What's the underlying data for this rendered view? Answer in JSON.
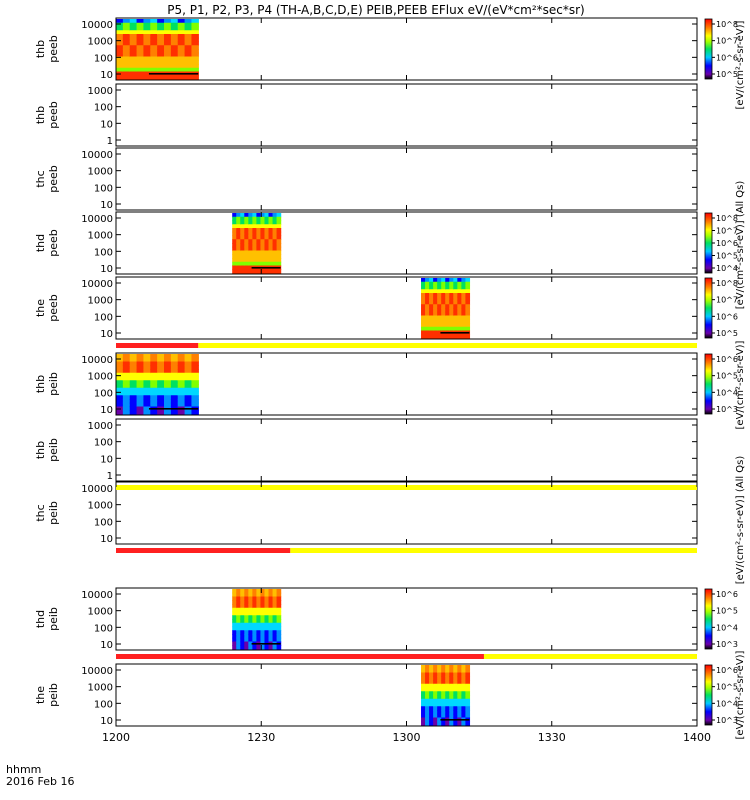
{
  "chart_data": {
    "type": "heatmap",
    "title": "P5, P1, P2, P3, P4 (TH-A,B,C,D,E) PEIB,PEEB EFlux eV/(eV*cm²*sec*sr)",
    "xaxis": {
      "ticks": [
        "1200",
        "1230",
        "1300",
        "1330",
        "1400"
      ],
      "label_line1": "hhmm",
      "label_line2": "2016 Feb 16",
      "range_minutes": [
        0,
        120
      ]
    },
    "colorbar_label_electron": "[eV/(cm²-s-sr-eV)]",
    "colorbar_label_ion": "[eV/(cm²-s-sr-eV)] (All Qs)",
    "panels": [
      {
        "probe": "thb",
        "species": "peeb",
        "ylabel1": "thb",
        "ylabel2": "peeb",
        "yticks": [
          "10",
          "100",
          "1000",
          "10000"
        ],
        "data": [
          {
            "start_min": 0,
            "end_min": 17,
            "pattern": "electron"
          }
        ],
        "colorbar_ticks": [
          "10^5",
          "10^6",
          "10^7",
          "10^8"
        ]
      },
      {
        "probe": "thb",
        "species": "peeb",
        "ylabel1": "thb",
        "ylabel2": "peeb",
        "yticks": [
          "1",
          "10",
          "100",
          "1000"
        ],
        "data": [],
        "colorbar_ticks": []
      },
      {
        "probe": "thc",
        "species": "peeb",
        "ylabel1": "thc",
        "ylabel2": "peeb",
        "yticks": [
          "10",
          "100",
          "1000",
          "10000"
        ],
        "data": [],
        "colorbar_ticks": []
      },
      {
        "probe": "thd",
        "species": "peeb",
        "ylabel1": "thd",
        "ylabel2": "peeb",
        "yticks": [
          "10",
          "100",
          "1000",
          "10000"
        ],
        "data": [
          {
            "start_min": 24,
            "end_min": 34,
            "pattern": "electron"
          }
        ],
        "colorbar_ticks": [
          "10^4",
          "10^5",
          "10^6",
          "10^7",
          "10^8"
        ]
      },
      {
        "probe": "the",
        "species": "peeb",
        "ylabel1": "the",
        "ylabel2": "peeb",
        "yticks": [
          "10",
          "100",
          "1000",
          "10000"
        ],
        "data": [
          {
            "start_min": 63,
            "end_min": 73,
            "pattern": "electron"
          }
        ],
        "colorbar_ticks": [
          "10^5",
          "10^6",
          "10^7",
          "10^8"
        ]
      },
      {
        "probe": "thb",
        "species": "peib",
        "ylabel1": "thb",
        "ylabel2": "peib",
        "yticks": [
          "10",
          "100",
          "1000",
          "10000"
        ],
        "data": [
          {
            "start_min": 0,
            "end_min": 17,
            "pattern": "ion"
          }
        ],
        "colorbar_ticks": [
          "10^3",
          "10^4",
          "10^5",
          "10^6"
        ]
      },
      {
        "probe": "thb",
        "species": "peib",
        "ylabel1": "thb",
        "ylabel2": "peib",
        "yticks": [
          "1",
          "10",
          "100",
          "1000"
        ],
        "data": [],
        "colorbar_ticks": []
      },
      {
        "probe": "thc",
        "species": "peib",
        "ylabel1": "thc",
        "ylabel2": "peib",
        "yticks": [
          "10",
          "100",
          "1000",
          "10000"
        ],
        "data": [],
        "colorbar_ticks": []
      },
      {
        "probe": "thd",
        "species": "peib",
        "ylabel1": "thd",
        "ylabel2": "peib",
        "yticks": [
          "10",
          "100",
          "1000",
          "10000"
        ],
        "data": [
          {
            "start_min": 24,
            "end_min": 34,
            "pattern": "ion"
          }
        ],
        "colorbar_ticks": [
          "10^3",
          "10^4",
          "10^5",
          "10^6"
        ]
      },
      {
        "probe": "the",
        "species": "peib",
        "ylabel1": "the",
        "ylabel2": "peib",
        "yticks": [
          "10",
          "100",
          "1000",
          "10000"
        ],
        "data": [
          {
            "start_min": 63,
            "end_min": 73,
            "pattern": "ion"
          }
        ],
        "colorbar_ticks": [
          "10^3",
          "10^4",
          "10^5",
          "10^6"
        ]
      }
    ],
    "status_bars": [
      {
        "after_panel": 4,
        "segments": [
          {
            "start_min": 0,
            "end_min": 17,
            "color": "#ff2020"
          },
          {
            "start_min": 17,
            "end_min": 120,
            "color": "#ffff00"
          }
        ]
      },
      {
        "after_panel": 6,
        "segments": [
          {
            "start_min": 0,
            "end_min": 120,
            "color": "#ffff00"
          }
        ]
      },
      {
        "after_panel": 7,
        "segments": [
          {
            "start_min": 0,
            "end_min": 36,
            "color": "#ff2020"
          },
          {
            "start_min": 36,
            "end_min": 120,
            "color": "#ffff00"
          }
        ]
      },
      {
        "after_panel": 8,
        "segments": [
          {
            "start_min": 0,
            "end_min": 76,
            "color": "#ff2020"
          },
          {
            "start_min": 76,
            "end_min": 120,
            "color": "#ffff00"
          }
        ]
      }
    ]
  }
}
